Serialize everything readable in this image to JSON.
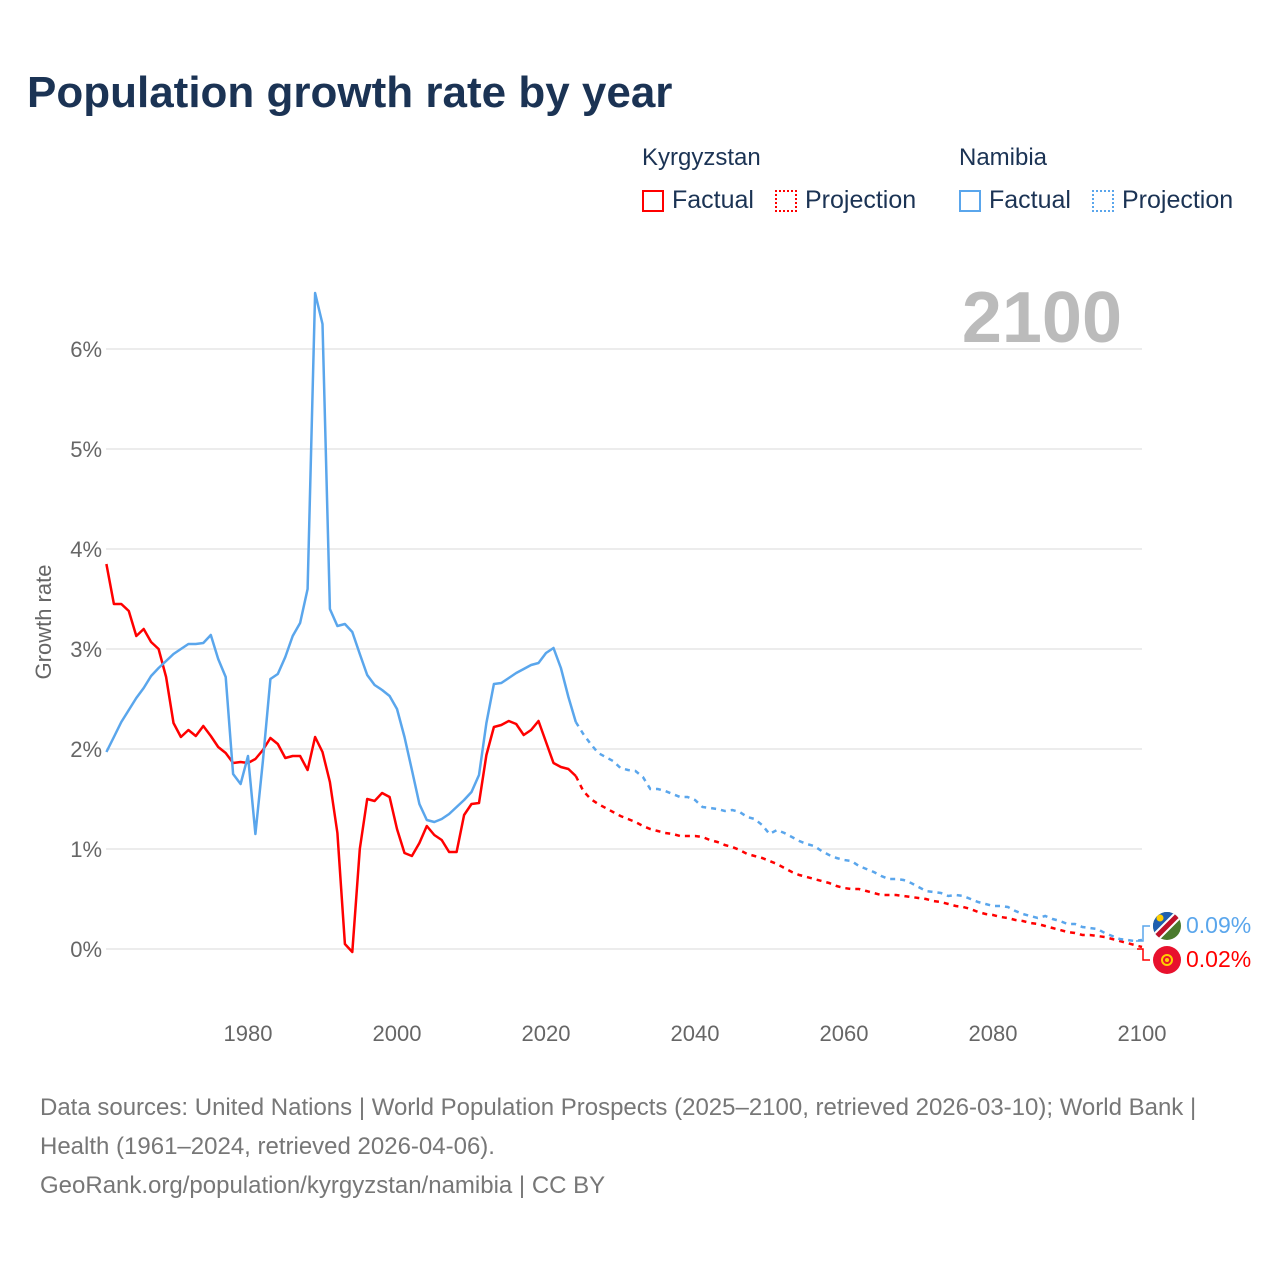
{
  "title": "Population growth rate by year",
  "legend": {
    "groups": [
      {
        "name": "Kyrgyzstan",
        "color": "#ff0000",
        "factual": "Factual",
        "projection": "Projection"
      },
      {
        "name": "Namibia",
        "color": "#5aa6ec",
        "factual": "Factual",
        "projection": "Projection"
      }
    ]
  },
  "footer": {
    "sources": "Data sources: United Nations | World Population Prospects (2025–2100, retrieved 2026-03-10); World Bank | Health (1961–2024, retrieved 2026-04-06).",
    "link": "GeoRank.org/population/kyrgyzstan/namibia | CC BY"
  },
  "chart_data": {
    "type": "line",
    "title": "Population growth rate by year",
    "year_label": "2100",
    "xlabel": "",
    "ylabel": "Growth rate",
    "xlim": [
      1961,
      2100
    ],
    "ylim": [
      -0.6,
      6.6
    ],
    "xticks": [
      1980,
      2000,
      2020,
      2040,
      2060,
      2080,
      2100
    ],
    "yticks": [
      0,
      1,
      2,
      3,
      4,
      5,
      6
    ],
    "ytick_labels": [
      "0%",
      "1%",
      "2%",
      "3%",
      "4%",
      "5%",
      "6%"
    ],
    "grid": true,
    "legend_position": "top-right",
    "series": [
      {
        "name": "Kyrgyzstan",
        "color": "#ff0000",
        "end_label": "0.02%",
        "factual_start": 1961,
        "factual": [
          3.85,
          3.45,
          3.45,
          3.38,
          3.13,
          3.2,
          3.07,
          3.0,
          2.72,
          2.26,
          2.12,
          2.19,
          2.13,
          2.23,
          2.13,
          2.02,
          1.96,
          1.86,
          1.87,
          1.86,
          1.9,
          1.99,
          2.11,
          2.05,
          1.91,
          1.93,
          1.93,
          1.79,
          2.12,
          1.97,
          1.67,
          1.16,
          0.05,
          -0.03,
          1.0,
          1.5,
          1.48,
          1.56,
          1.52,
          1.2,
          0.96,
          0.93,
          1.06,
          1.23,
          1.14,
          1.09,
          0.97,
          0.97,
          1.34,
          1.45,
          1.46,
          1.94,
          2.22,
          2.24,
          2.28,
          2.25,
          2.14,
          2.19,
          2.28,
          2.07,
          1.86,
          1.82,
          1.8,
          1.73
        ],
        "projection_start": 2025,
        "projection": [
          1.58,
          1.5,
          1.45,
          1.41,
          1.37,
          1.33,
          1.3,
          1.27,
          1.23,
          1.2,
          1.18,
          1.16,
          1.15,
          1.13,
          1.13,
          1.13,
          1.12,
          1.09,
          1.07,
          1.04,
          1.02,
          0.99,
          0.95,
          0.93,
          0.91,
          0.88,
          0.85,
          0.81,
          0.77,
          0.74,
          0.72,
          0.7,
          0.68,
          0.66,
          0.63,
          0.61,
          0.6,
          0.6,
          0.58,
          0.56,
          0.54,
          0.54,
          0.54,
          0.53,
          0.52,
          0.51,
          0.5,
          0.48,
          0.47,
          0.45,
          0.43,
          0.42,
          0.4,
          0.37,
          0.35,
          0.34,
          0.32,
          0.31,
          0.29,
          0.28,
          0.26,
          0.25,
          0.23,
          0.21,
          0.19,
          0.17,
          0.16,
          0.14,
          0.14,
          0.13,
          0.12,
          0.1,
          0.08,
          0.06,
          0.04,
          0.02
        ]
      },
      {
        "name": "Namibia",
        "color": "#5aa6ec",
        "end_label": "0.09%",
        "factual_start": 1961,
        "factual": [
          1.97,
          2.12,
          2.27,
          2.39,
          2.51,
          2.61,
          2.73,
          2.81,
          2.88,
          2.95,
          3.0,
          3.05,
          3.05,
          3.06,
          3.14,
          2.9,
          2.72,
          1.75,
          1.65,
          1.93,
          1.15,
          1.88,
          2.7,
          2.75,
          2.92,
          3.13,
          3.26,
          3.6,
          6.56,
          6.25,
          3.4,
          3.23,
          3.25,
          3.17,
          2.95,
          2.74,
          2.64,
          2.59,
          2.53,
          2.4,
          2.12,
          1.79,
          1.45,
          1.29,
          1.27,
          1.3,
          1.35,
          1.42,
          1.49,
          1.57,
          1.74,
          2.26,
          2.65,
          2.66,
          2.71,
          2.76,
          2.8,
          2.84,
          2.86,
          2.96,
          3.01,
          2.81,
          2.52,
          2.27
        ],
        "projection_start": 2025,
        "projection": [
          2.15,
          2.05,
          1.96,
          1.92,
          1.88,
          1.81,
          1.79,
          1.78,
          1.72,
          1.6,
          1.6,
          1.58,
          1.55,
          1.52,
          1.52,
          1.49,
          1.42,
          1.41,
          1.4,
          1.38,
          1.39,
          1.37,
          1.32,
          1.3,
          1.24,
          1.15,
          1.19,
          1.16,
          1.12,
          1.08,
          1.05,
          1.03,
          0.98,
          0.94,
          0.91,
          0.89,
          0.88,
          0.83,
          0.8,
          0.77,
          0.73,
          0.7,
          0.7,
          0.69,
          0.66,
          0.62,
          0.58,
          0.57,
          0.56,
          0.53,
          0.54,
          0.53,
          0.5,
          0.47,
          0.45,
          0.43,
          0.43,
          0.42,
          0.38,
          0.35,
          0.33,
          0.31,
          0.33,
          0.3,
          0.28,
          0.25,
          0.25,
          0.22,
          0.21,
          0.2,
          0.16,
          0.13,
          0.1,
          0.09,
          0.08,
          0.09
        ]
      }
    ]
  }
}
